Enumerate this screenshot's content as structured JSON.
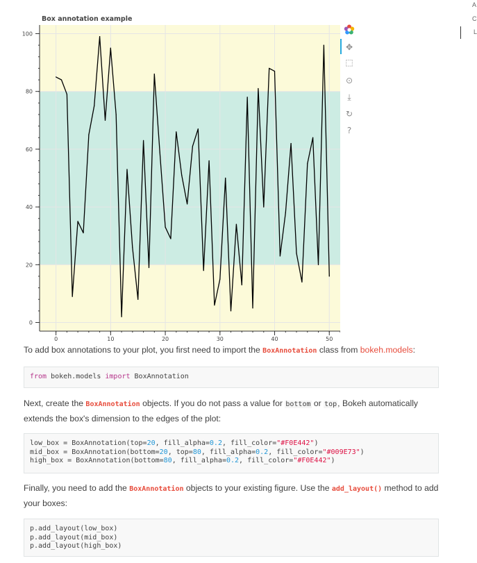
{
  "chart_data": {
    "type": "line",
    "title": "Box annotation example",
    "xlim": [
      -3,
      52
    ],
    "ylim": [
      -3,
      103
    ],
    "x_ticks": [
      0,
      10,
      20,
      30,
      40,
      50
    ],
    "y_ticks": [
      0,
      20,
      40,
      60,
      80,
      100
    ],
    "grid": true,
    "boxes": [
      {
        "bottom": null,
        "top": 20,
        "color": "#F0E442",
        "alpha": 0.2
      },
      {
        "bottom": 20,
        "top": 80,
        "color": "#009E73",
        "alpha": 0.2
      },
      {
        "bottom": 80,
        "top": null,
        "color": "#F0E442",
        "alpha": 0.2
      }
    ],
    "series": [
      {
        "color": "#000000",
        "x": [
          0,
          1,
          2,
          3,
          4,
          5,
          6,
          7,
          8,
          9,
          10,
          11,
          12,
          13,
          14,
          15,
          16,
          17,
          18,
          19,
          20,
          21,
          22,
          23,
          24,
          25,
          26,
          27,
          28,
          29,
          30,
          31,
          32,
          33,
          34,
          35,
          36,
          37,
          38,
          39,
          40,
          41,
          42,
          43,
          44,
          45,
          46,
          47,
          48,
          49,
          50
        ],
        "y": [
          85,
          84,
          79,
          9,
          35,
          31,
          65,
          75,
          99,
          70,
          95,
          72,
          2,
          53,
          26,
          8,
          63,
          19,
          86,
          59,
          33,
          29,
          66,
          51,
          41,
          61,
          67,
          18,
          56,
          6,
          15,
          50,
          4,
          34,
          13,
          78,
          5,
          81,
          40,
          88,
          87,
          23,
          38,
          62,
          24,
          14,
          55,
          64,
          20,
          96,
          16
        ]
      }
    ]
  },
  "toolbar": {
    "logo_icon": "bokeh-logo-icon",
    "tools": [
      "pan-icon",
      "box-zoom-icon",
      "wheel-zoom-icon",
      "save-icon",
      "reset-icon",
      "help-icon"
    ]
  },
  "side_fragments": [
    "A",
    "C",
    "L"
  ],
  "text": {
    "p1_a": "To add box annotations to your plot, you first need to import the ",
    "p1_code": "BoxAnnotation",
    "p1_b": " class from ",
    "p1_link": "bokeh.models",
    "p1_c": ":",
    "p2_a": "Next, create the ",
    "p2_code": "BoxAnnotation",
    "p2_b": " objects. If you do not pass a value for ",
    "p2_code2": "bottom",
    "p2_c": " or ",
    "p2_code3": "top",
    "p2_d": ", Bokeh automatically extends the box's dimension to the edges of the plot:",
    "p3_a": "Finally, you need to add the ",
    "p3_code": "BoxAnnotation",
    "p3_b": " objects to your existing figure. Use the ",
    "p3_code2": "add_layout()",
    "p3_c": " method to add your boxes:"
  },
  "code": {
    "import_kw_from": "from",
    "import_mod": " bokeh.models ",
    "import_kw_import": "import",
    "import_name": " BoxAnnotation",
    "low_a": "low_box = BoxAnnotation(top=",
    "low_n1": "20",
    "low_b": ", fill_alpha=",
    "low_n2": "0.2",
    "low_c": ", fill_color=",
    "low_s": "\"#F0E442\"",
    "low_d": ")",
    "mid_a": "mid_box = BoxAnnotation(bottom=",
    "mid_n1": "20",
    "mid_b": ", top=",
    "mid_n2": "80",
    "mid_c": ", fill_alpha=",
    "mid_n3": "0.2",
    "mid_d": ", fill_color=",
    "mid_s": "\"#009E73\"",
    "mid_e": ")",
    "high_a": "high_box = BoxAnnotation(bottom=",
    "high_n1": "80",
    "high_b": ", fill_alpha=",
    "high_n2": "0.2",
    "high_c": ", fill_color=",
    "high_s": "\"#F0E442\"",
    "high_d": ")",
    "add1": "p.add_layout(low_box)",
    "add2": "p.add_layout(mid_box)",
    "add3": "p.add_layout(high_box)"
  }
}
